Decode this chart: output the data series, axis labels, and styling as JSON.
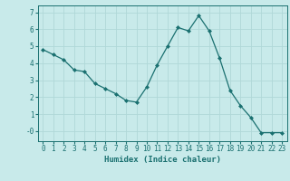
{
  "x": [
    0,
    1,
    2,
    3,
    4,
    5,
    6,
    7,
    8,
    9,
    10,
    11,
    12,
    13,
    14,
    15,
    16,
    17,
    18,
    19,
    20,
    21,
    22,
    23
  ],
  "y": [
    4.8,
    4.5,
    4.2,
    3.6,
    3.5,
    2.8,
    2.5,
    2.2,
    1.8,
    1.7,
    2.6,
    3.9,
    5.0,
    6.1,
    5.9,
    6.8,
    5.9,
    4.3,
    2.4,
    1.5,
    0.8,
    -0.1,
    -0.1,
    -0.1
  ],
  "line_color": "#1a7070",
  "marker": "D",
  "marker_size": 2.0,
  "bg_color": "#c8eaea",
  "grid_color": "#b0d8d8",
  "xlabel": "Humidex (Indice chaleur)",
  "xlabel_fontsize": 6.5,
  "tick_fontsize": 5.5,
  "ylim": [
    -0.6,
    7.4
  ],
  "xlim": [
    -0.5,
    23.5
  ],
  "yticks": [
    0,
    1,
    2,
    3,
    4,
    5,
    6,
    7
  ],
  "ytick_labels": [
    "-0",
    "1",
    "2",
    "3",
    "4",
    "5",
    "6",
    "7"
  ],
  "xticks": [
    0,
    1,
    2,
    3,
    4,
    5,
    6,
    7,
    8,
    9,
    10,
    11,
    12,
    13,
    14,
    15,
    16,
    17,
    18,
    19,
    20,
    21,
    22,
    23
  ]
}
